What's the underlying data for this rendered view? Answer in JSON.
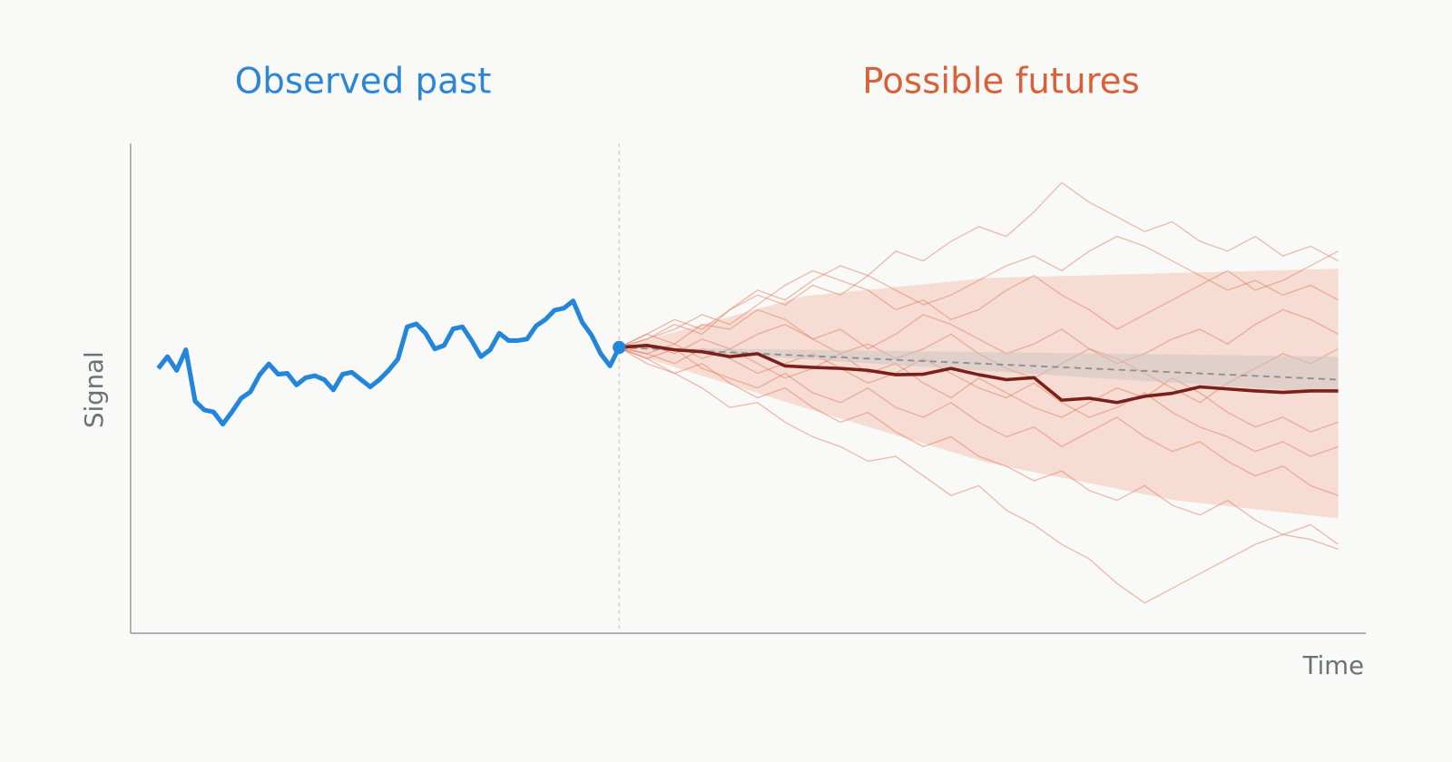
{
  "chart_data": {
    "type": "line",
    "annotations": [
      {
        "text": "Observed past",
        "color": "#2b86d8"
      },
      {
        "text": "Possible futures",
        "color": "#d9613a"
      }
    ],
    "y_label": "Signal",
    "x_label": "Time",
    "xlim": [
      -3,
      131
    ],
    "ylim": [
      0,
      100
    ],
    "past": {
      "color": "#2386db",
      "x": [
        0,
        1,
        2,
        3,
        4,
        5,
        6,
        7,
        8,
        9,
        10,
        11,
        12,
        13,
        14,
        15,
        16,
        17,
        18,
        19,
        20,
        21,
        22,
        23,
        24,
        25,
        26,
        27,
        28,
        29,
        30,
        31,
        32,
        33,
        34,
        35,
        36,
        37,
        38,
        39,
        40,
        41,
        42,
        43,
        44,
        45,
        46,
        47,
        48,
        49,
        50
      ],
      "values": [
        54.0,
        56.4,
        53.6,
        57.8,
        47.3,
        45.5,
        45.1,
        42.6,
        45.1,
        47.9,
        49.2,
        52.7,
        54.9,
        52.8,
        53.0,
        50.6,
        52.1,
        52.5,
        51.7,
        49.6,
        52.8,
        53.2,
        51.7,
        50.2,
        51.7,
        53.6,
        55.9,
        62.5,
        63.1,
        61.2,
        58.0,
        58.7,
        62.1,
        62.5,
        59.7,
        56.4,
        57.8,
        61.2,
        59.7,
        59.7,
        60.0,
        62.7,
        64.0,
        65.9,
        66.3,
        67.8,
        63.4,
        60.8,
        57.0,
        54.5,
        58.3
      ]
    },
    "futures": {
      "color": "#e27b5e",
      "x": [
        50,
        53,
        56,
        59,
        62,
        65,
        68,
        71,
        74,
        77,
        80,
        83,
        86,
        89,
        92,
        95,
        98,
        101,
        104,
        107,
        110,
        113,
        116,
        119,
        122,
        125,
        128
      ],
      "paths": [
        [
          58.3,
          60,
          63,
          61,
          66,
          70,
          68,
          72,
          75,
          73,
          78,
          76,
          80,
          83,
          81,
          86,
          92,
          88,
          85,
          82,
          84,
          80,
          78,
          81,
          77,
          79,
          76
        ],
        [
          58.3,
          55,
          53,
          50,
          46,
          47,
          43,
          40,
          38,
          35,
          36,
          32,
          28,
          30,
          25,
          22,
          18,
          15,
          10,
          6,
          9,
          12,
          15,
          18,
          20,
          19,
          17
        ],
        [
          58.3,
          61,
          59,
          63,
          62,
          66,
          64,
          60,
          62,
          58,
          61,
          65,
          63,
          60,
          57,
          59,
          62,
          58,
          55,
          57,
          60,
          62,
          59,
          63,
          66,
          64,
          61
        ],
        [
          58.3,
          56,
          58,
          54,
          52,
          50,
          53,
          49,
          47,
          50,
          46,
          44,
          47,
          43,
          40,
          42,
          38,
          41,
          44,
          40,
          37,
          39,
          35,
          32,
          34,
          30,
          28
        ],
        [
          58.3,
          60,
          62,
          65,
          63,
          67,
          71,
          74,
          72,
          70,
          66,
          68,
          64,
          66,
          70,
          73,
          69,
          66,
          62,
          65,
          68,
          71,
          74,
          70,
          72,
          75,
          78
        ],
        [
          58.3,
          57,
          59,
          56,
          58,
          55,
          52,
          54,
          57,
          53,
          55,
          51,
          48,
          52,
          49,
          46,
          44,
          47,
          50,
          48,
          52,
          49,
          45,
          42,
          44,
          41,
          43
        ],
        [
          58.3,
          59,
          57,
          60,
          58,
          61,
          63,
          60,
          57,
          59,
          56,
          58,
          61,
          57,
          54,
          52,
          55,
          58,
          56,
          53,
          50,
          47,
          51,
          54,
          57,
          55,
          58
        ],
        [
          58.3,
          56,
          53,
          55,
          51,
          48,
          50,
          46,
          43,
          45,
          41,
          38,
          40,
          36,
          34,
          31,
          33,
          29,
          27,
          30,
          26,
          24,
          27,
          23,
          20,
          22,
          18
        ],
        [
          58.3,
          61,
          64,
          62,
          66,
          69,
          67,
          71,
          69,
          73,
          70,
          67,
          69,
          72,
          75,
          77,
          74,
          78,
          81,
          79,
          76,
          73,
          70,
          72,
          69,
          71,
          68
        ],
        [
          58.3,
          57,
          55,
          58,
          56,
          53,
          55,
          57,
          54,
          51,
          53,
          56,
          53,
          50,
          48,
          51,
          47,
          44,
          46,
          49,
          45,
          42,
          40,
          37,
          39,
          36,
          38
        ]
      ]
    },
    "highlight": {
      "color": "#7a1f1a",
      "values": [
        58.3,
        58.7,
        57.8,
        57.4,
        56.4,
        57.0,
        54.5,
        54.2,
        54.0,
        53.6,
        52.7,
        52.8,
        54.0,
        52.7,
        51.7,
        52.1,
        47.5,
        47.9,
        47.0,
        48.3,
        48.9,
        50.2,
        49.8,
        49.4,
        49.1,
        49.4,
        49.4
      ]
    },
    "mean": {
      "color": "#8a8f95",
      "x": [
        50,
        128
      ],
      "values": [
        58.3,
        51.7
      ]
    },
    "band": {
      "color": "#f2b9a3",
      "x": [
        50,
        70,
        90,
        110,
        128
      ],
      "upper": [
        58.3,
        68.75,
        72.5,
        73.5,
        74.4
      ],
      "lower": [
        57.8,
        46.0,
        34.7,
        27.1,
        23.3
      ]
    },
    "inner_band": {
      "color": "#c9c4c0",
      "x": [
        50,
        128
      ],
      "upper": [
        58.3,
        56.4
      ],
      "lower": [
        58.3,
        48.9
      ]
    }
  }
}
